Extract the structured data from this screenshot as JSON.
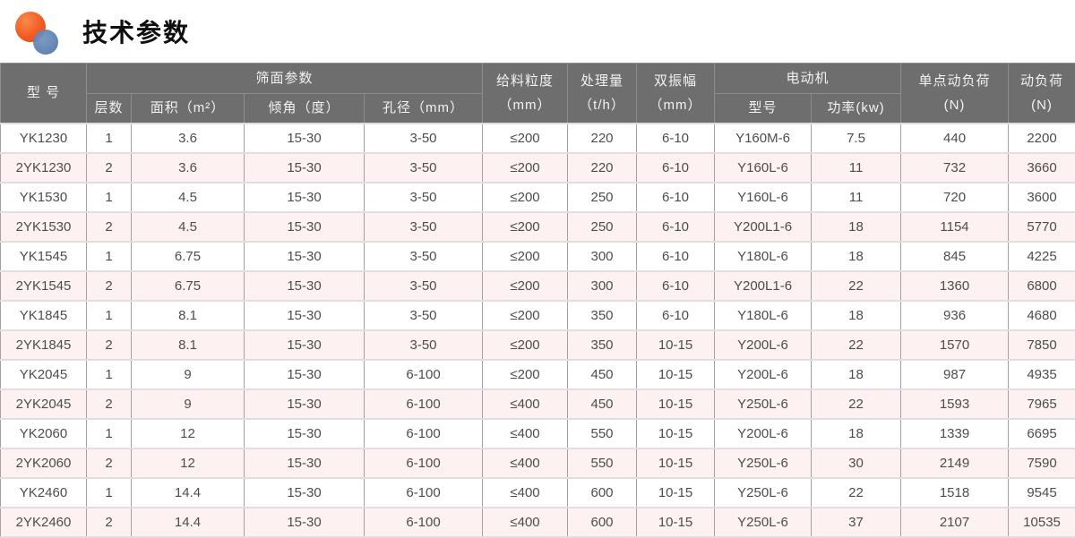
{
  "page": {
    "title": "技术参数"
  },
  "colors": {
    "header_bg": "#6e6e6e",
    "header_text": "#f2f2f2",
    "row_alt_bg": "#fdf1f1",
    "row_bg": "#ffffff",
    "body_text": "#4d4d4d",
    "logo_orange": "#f25a22",
    "logo_blue": "#5b80ae"
  },
  "table": {
    "header": {
      "model": "型 号",
      "screen_group": "筛面参数",
      "layers": "层数",
      "area": "面积（m²）",
      "incline": "倾角（度）",
      "aperture": "孔径（mm）",
      "feed_size_line1": "给料粒度",
      "feed_size_line2": "（mm）",
      "capacity_line1": "处理量",
      "capacity_line2": "（t/h）",
      "amplitude_line1": "双振幅",
      "amplitude_line2": "（mm）",
      "motor_group": "电动机",
      "motor_model": "型号",
      "motor_power": "功率(kw)",
      "single_load_line1": "单点动负荷",
      "single_load_line2": "(N)",
      "dynamic_load_line1": "动负荷",
      "dynamic_load_line2": "(N)"
    },
    "rows": [
      [
        "YK1230",
        "1",
        "3.6",
        "15-30",
        "3-50",
        "≤200",
        "220",
        "6-10",
        "Y160M-6",
        "7.5",
        "440",
        "2200"
      ],
      [
        "2YK1230",
        "2",
        "3.6",
        "15-30",
        "3-50",
        "≤200",
        "220",
        "6-10",
        "Y160L-6",
        "11",
        "732",
        "3660"
      ],
      [
        "YK1530",
        "1",
        "4.5",
        "15-30",
        "3-50",
        "≤200",
        "250",
        "6-10",
        "Y160L-6",
        "11",
        "720",
        "3600"
      ],
      [
        "2YK1530",
        "2",
        "4.5",
        "15-30",
        "3-50",
        "≤200",
        "250",
        "6-10",
        "Y200L1-6",
        "18",
        "1154",
        "5770"
      ],
      [
        "YK1545",
        "1",
        "6.75",
        "15-30",
        "3-50",
        "≤200",
        "300",
        "6-10",
        "Y180L-6",
        "18",
        "845",
        "4225"
      ],
      [
        "2YK1545",
        "2",
        "6.75",
        "15-30",
        "3-50",
        "≤200",
        "300",
        "6-10",
        "Y200L1-6",
        "22",
        "1360",
        "6800"
      ],
      [
        "YK1845",
        "1",
        "8.1",
        "15-30",
        "3-50",
        "≤200",
        "350",
        "6-10",
        "Y180L-6",
        "18",
        "936",
        "4680"
      ],
      [
        "2YK1845",
        "2",
        "8.1",
        "15-30",
        "3-50",
        "≤200",
        "350",
        "10-15",
        "Y200L-6",
        "22",
        "1570",
        "7850"
      ],
      [
        "YK2045",
        "1",
        "9",
        "15-30",
        "6-100",
        "≤200",
        "450",
        "10-15",
        "Y200L-6",
        "18",
        "987",
        "4935"
      ],
      [
        "2YK2045",
        "2",
        "9",
        "15-30",
        "6-100",
        "≤400",
        "450",
        "10-15",
        "Y250L-6",
        "22",
        "1593",
        "7965"
      ],
      [
        "YK2060",
        "1",
        "12",
        "15-30",
        "6-100",
        "≤400",
        "550",
        "10-15",
        "Y200L-6",
        "18",
        "1339",
        "6695"
      ],
      [
        "2YK2060",
        "2",
        "12",
        "15-30",
        "6-100",
        "≤400",
        "550",
        "10-15",
        "Y250L-6",
        "30",
        "2149",
        "7590"
      ],
      [
        "YK2460",
        "1",
        "14.4",
        "15-30",
        "6-100",
        "≤400",
        "600",
        "10-15",
        "Y250L-6",
        "22",
        "1518",
        "9545"
      ],
      [
        "2YK2460",
        "2",
        "14.4",
        "15-30",
        "6-100",
        "≤400",
        "600",
        "10-15",
        "Y250L-6",
        "37",
        "2107",
        "10535"
      ]
    ]
  }
}
